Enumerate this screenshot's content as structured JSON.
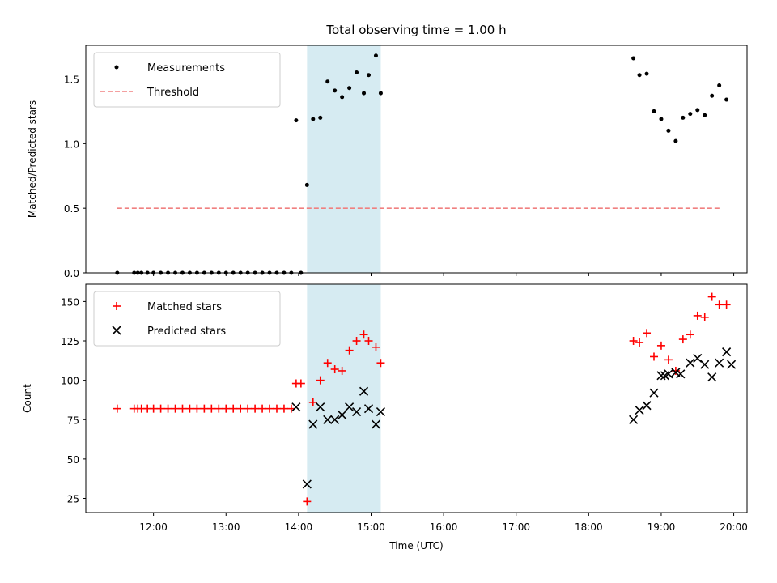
{
  "chart_data": [
    {
      "type": "scatter",
      "title": "Total observing time = 1.00 h",
      "xlabel": "",
      "ylabel": "Matched/Predicted stars",
      "ylim": [
        0,
        1.76
      ],
      "xlim": [
        "11:04",
        "20:11"
      ],
      "yticks": [
        "0.0",
        "0.5",
        "1.0",
        "1.5"
      ],
      "grid": false,
      "legend": "top-left",
      "shaded_region": {
        "from": "14:07",
        "to": "15:08",
        "color": "#add8e6"
      },
      "series": [
        {
          "name": "Measurements",
          "marker": "dot",
          "color": "#000000",
          "x": [
            "11:30",
            "11:44",
            "11:47",
            "11:50",
            "11:55",
            "12:00",
            "12:06",
            "12:12",
            "12:18",
            "12:24",
            "12:30",
            "12:36",
            "12:42",
            "12:48",
            "12:54",
            "13:00",
            "13:06",
            "13:12",
            "13:18",
            "13:24",
            "13:30",
            "13:36",
            "13:42",
            "13:48",
            "13:54",
            "13:58",
            "14:02",
            "14:07",
            "14:12",
            "14:18",
            "14:24",
            "14:30",
            "14:36",
            "14:42",
            "14:48",
            "14:54",
            "14:58",
            "15:04",
            "15:08",
            "18:37",
            "18:42",
            "18:48",
            "18:54",
            "19:00",
            "19:06",
            "19:12",
            "19:18",
            "19:24",
            "19:30",
            "19:36",
            "19:42",
            "19:48",
            "19:54"
          ],
          "y": [
            0,
            0,
            0,
            0,
            0,
            0,
            0,
            0,
            0,
            0,
            0,
            0,
            0,
            0,
            0,
            0,
            0,
            0,
            0,
            0,
            0,
            0,
            0,
            0,
            0,
            1.18,
            0,
            0.68,
            1.19,
            1.2,
            1.48,
            1.41,
            1.36,
            1.43,
            1.55,
            1.39,
            1.53,
            1.68,
            1.39,
            1.66,
            1.53,
            1.54,
            1.25,
            1.19,
            1.1,
            1.02,
            1.2,
            1.23,
            1.26,
            1.22,
            1.37,
            1.45,
            1.34
          ]
        },
        {
          "name": "Threshold",
          "style": "dashed",
          "color": "#f08080",
          "x": [
            "11:30",
            "19:50"
          ],
          "y": [
            0.5,
            0.5
          ]
        }
      ]
    },
    {
      "type": "scatter",
      "title": "",
      "xlabel": "Time (UTC)",
      "ylabel": "Count",
      "ylim": [
        16,
        161
      ],
      "xlim": [
        "11:04",
        "20:11"
      ],
      "xticks": [
        "12:00",
        "13:00",
        "14:00",
        "15:00",
        "16:00",
        "17:00",
        "18:00",
        "19:00",
        "20:00"
      ],
      "yticks": [
        "25",
        "50",
        "75",
        "100",
        "125",
        "150"
      ],
      "grid": false,
      "legend": "top-left",
      "shaded_region": {
        "from": "14:07",
        "to": "15:08",
        "color": "#add8e6"
      },
      "series": [
        {
          "name": "Matched stars",
          "marker": "plus",
          "color": "#ff0000",
          "x": [
            "11:30",
            "11:44",
            "11:47",
            "11:50",
            "11:55",
            "12:00",
            "12:06",
            "12:12",
            "12:18",
            "12:24",
            "12:30",
            "12:36",
            "12:42",
            "12:48",
            "12:54",
            "13:00",
            "13:06",
            "13:12",
            "13:18",
            "13:24",
            "13:30",
            "13:36",
            "13:42",
            "13:48",
            "13:54",
            "13:58",
            "14:02",
            "14:07",
            "14:12",
            "14:18",
            "14:24",
            "14:30",
            "14:36",
            "14:42",
            "14:48",
            "14:54",
            "14:58",
            "15:04",
            "15:08",
            "18:37",
            "18:42",
            "18:48",
            "18:54",
            "19:00",
            "19:06",
            "19:12",
            "19:18",
            "19:24",
            "19:30",
            "19:36",
            "19:42",
            "19:48",
            "19:54"
          ],
          "y": [
            82,
            82,
            82,
            82,
            82,
            82,
            82,
            82,
            82,
            82,
            82,
            82,
            82,
            82,
            82,
            82,
            82,
            82,
            82,
            82,
            82,
            82,
            82,
            82,
            82,
            98,
            98,
            23,
            86,
            100,
            111,
            107,
            106,
            119,
            125,
            129,
            125,
            121,
            111,
            125,
            124,
            130,
            115,
            122,
            113,
            106,
            126,
            129,
            141,
            140,
            153,
            148,
            148
          ]
        },
        {
          "name": "Predicted stars",
          "marker": "x",
          "color": "#000000",
          "x": [
            "13:58",
            "14:07",
            "14:12",
            "14:18",
            "14:24",
            "14:30",
            "14:36",
            "14:42",
            "14:48",
            "14:54",
            "14:58",
            "15:04",
            "15:08",
            "18:37",
            "18:42",
            "18:48",
            "18:54",
            "19:00",
            "19:03",
            "19:06",
            "19:12",
            "19:16",
            "19:24",
            "19:30",
            "19:36",
            "19:42",
            "19:48",
            "19:54",
            "19:58"
          ],
          "y": [
            83,
            34,
            72,
            83,
            75,
            75,
            78,
            83,
            80,
            93,
            82,
            72,
            80,
            75,
            81,
            84,
            92,
            103,
            103,
            104,
            105,
            104,
            111,
            114,
            110,
            102,
            111,
            118,
            110
          ]
        }
      ]
    }
  ]
}
